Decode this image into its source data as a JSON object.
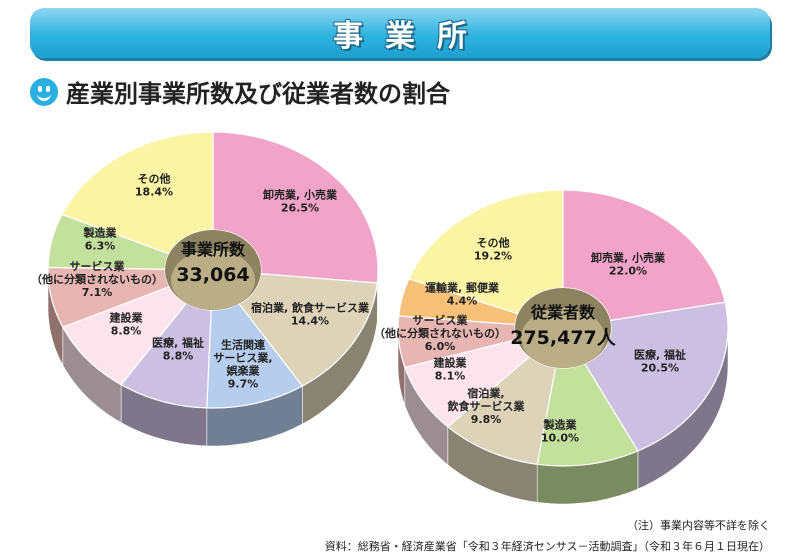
{
  "header": {
    "title": "事業所"
  },
  "subtitle": "産業別事業所数及び従業者数の割合",
  "chart_data": [
    {
      "type": "pie",
      "center_label": "事業所数",
      "center_value": "33,064",
      "slices": [
        {
          "label": "卸売業, 小売業",
          "value": 26.5,
          "pct": "26.5%",
          "color": "#f2a3c8"
        },
        {
          "label": "宿泊業, 飲食サービス業",
          "value": 14.4,
          "pct": "14.4%",
          "color": "#ddd3b8"
        },
        {
          "label": "生活関連\nサービス業,\n娯楽業",
          "value": 9.7,
          "pct": "9.7%",
          "color": "#b6cdee"
        },
        {
          "label": "医療, 福祉",
          "value": 8.8,
          "pct": "8.8%",
          "color": "#ccc0e2"
        },
        {
          "label": "建設業",
          "value": 8.8,
          "pct": "8.8%",
          "color": "#fce3ec"
        },
        {
          "label": "サービス業\n（他に分類されないもの）",
          "value": 7.1,
          "pct": "7.1%",
          "color": "#e8b6b2"
        },
        {
          "label": "製造業",
          "value": 6.3,
          "pct": "6.3%",
          "color": "#c3e09c"
        },
        {
          "label": "その他",
          "value": 18.4,
          "pct": "18.4%",
          "color": "#fbf4a5"
        }
      ]
    },
    {
      "type": "pie",
      "center_label": "従業者数",
      "center_value": "275,477人",
      "slices": [
        {
          "label": "卸売業, 小売業",
          "value": 22.0,
          "pct": "22.0%",
          "color": "#f2a3c8"
        },
        {
          "label": "医療, 福祉",
          "value": 20.5,
          "pct": "20.5%",
          "color": "#ccc0e2"
        },
        {
          "label": "製造業",
          "value": 10.0,
          "pct": "10.0%",
          "color": "#c3e09c"
        },
        {
          "label": "宿泊業,\n飲食サービス業",
          "value": 9.8,
          "pct": "9.8%",
          "color": "#ddd3b8"
        },
        {
          "label": "建設業",
          "value": 8.1,
          "pct": "8.1%",
          "color": "#fce3ec"
        },
        {
          "label": "サービス業\n（他に分類されないもの）",
          "value": 6.0,
          "pct": "6.0%",
          "color": "#e8b6b2"
        },
        {
          "label": "運輸業, 郵便業",
          "value": 4.4,
          "pct": "4.4%",
          "color": "#f7c17a"
        },
        {
          "label": "その他",
          "value": 19.2,
          "pct": "19.2%",
          "color": "#fbf4a5"
        }
      ]
    }
  ],
  "footer": {
    "note": "（注）事業内容等不詳を除く",
    "source": "資料：総務省・経済産業省「令和３年経済センサス－活動調査」（令和３年６月１日現在）"
  }
}
